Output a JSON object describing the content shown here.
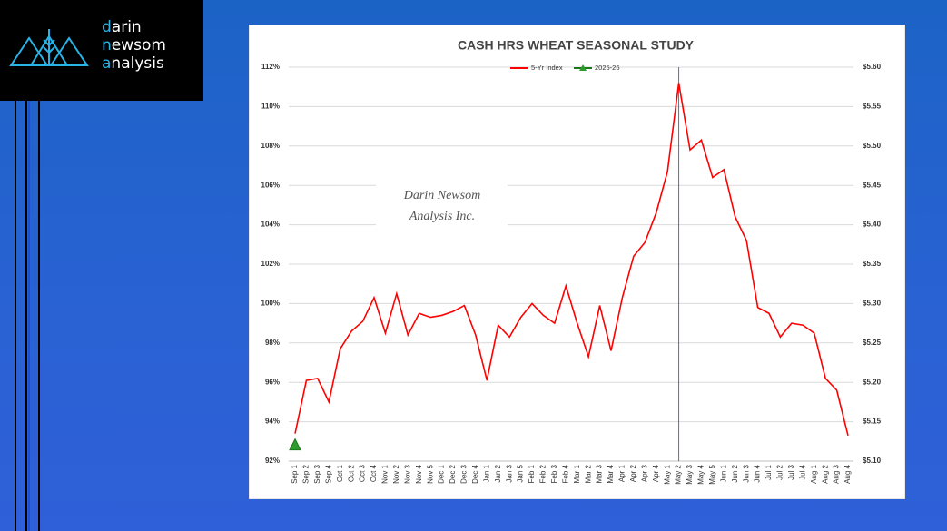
{
  "logo": [
    "darin",
    "newsom",
    "analysis"
  ],
  "chart_data": {
    "type": "line",
    "title": "CASH HRS WHEAT SEASONAL STUDY",
    "annotation": [
      "Darin Newsom",
      "Analysis Inc."
    ],
    "highlight": "May 2",
    "categories": [
      "Sep 1",
      "Sep 2",
      "Sep 3",
      "Sep 4",
      "Oct 1",
      "Oct 2",
      "Oct 3",
      "Oct 4",
      "Nov 1",
      "Nov 2",
      "Nov 3",
      "Nov 4",
      "Nov 5",
      "Dec 1",
      "Dec 2",
      "Dec 3",
      "Dec 4",
      "Jan 1",
      "Jan 2",
      "Jan 3",
      "Jan 5",
      "Feb 1",
      "Feb 2",
      "Feb 3",
      "Feb 4",
      "Mar 1",
      "Mar 2",
      "Mar 3",
      "Mar 4",
      "Apr 1",
      "Apr 2",
      "Apr 3",
      "Apr 4",
      "May 1",
      "May 2",
      "May 3",
      "May 4",
      "May 5",
      "Jun 1",
      "Jun 2",
      "Jun 3",
      "Jun 4",
      "Jul 1",
      "Jul 2",
      "Jul 3",
      "Jul 4",
      "Aug 1",
      "Aug 2",
      "Aug 3",
      "Aug 4"
    ],
    "series": [
      {
        "name": "5-Yr Index",
        "color": "#ff0000",
        "values": [
          93.4,
          96.1,
          96.2,
          95.0,
          97.7,
          98.6,
          99.1,
          100.3,
          98.5,
          100.5,
          98.4,
          99.5,
          99.3,
          99.4,
          99.6,
          99.9,
          98.4,
          96.1,
          98.9,
          98.3,
          99.3,
          100.0,
          99.4,
          99.0,
          100.9,
          99.0,
          97.3,
          99.9,
          97.6,
          100.3,
          102.4,
          103.1,
          104.6,
          106.7,
          111.2,
          107.8,
          108.3,
          106.4,
          106.8,
          104.4,
          103.2,
          99.8,
          99.5,
          98.3,
          99.0,
          98.9,
          98.5,
          96.2,
          95.6,
          93.3
        ]
      },
      {
        "name": "2025-26",
        "color": "#1a7a1a",
        "marker_color": "#2e9b2e",
        "axis": "y2",
        "values": [
          5.12,
          null,
          null,
          null,
          null,
          null,
          null,
          null,
          null,
          null,
          null,
          null,
          null,
          null,
          null,
          null,
          null,
          null,
          null,
          null,
          null,
          null,
          null,
          null,
          null,
          null,
          null,
          null,
          null,
          null,
          null,
          null,
          null,
          null,
          null,
          null,
          null,
          null,
          null,
          null,
          null,
          null,
          null,
          null,
          null,
          null,
          null,
          null,
          null,
          null
        ]
      }
    ],
    "ylim": [
      92,
      112
    ],
    "yticks": [
      {
        "value": 92,
        "label": "92%"
      },
      {
        "value": 94,
        "label": "94%"
      },
      {
        "value": 96,
        "label": "96%"
      },
      {
        "value": 98,
        "label": "98%"
      },
      {
        "value": 100,
        "label": "100%"
      },
      {
        "value": 102,
        "label": "102%"
      },
      {
        "value": 104,
        "label": "104%"
      },
      {
        "value": 106,
        "label": "106%"
      },
      {
        "value": 108,
        "label": "108%"
      },
      {
        "value": 110,
        "label": "110%"
      },
      {
        "value": 112,
        "label": "112%"
      }
    ],
    "y2lim": [
      5.1,
      5.6
    ],
    "y2ticks": [
      {
        "value": 5.1,
        "label": "$5.10"
      },
      {
        "value": 5.15,
        "label": "$5.15"
      },
      {
        "value": 5.2,
        "label": "$5.20"
      },
      {
        "value": 5.25,
        "label": "$5.25"
      },
      {
        "value": 5.3,
        "label": "$5.30"
      },
      {
        "value": 5.35,
        "label": "$5.35"
      },
      {
        "value": 5.4,
        "label": "$5.40"
      },
      {
        "value": 5.45,
        "label": "$5.45"
      },
      {
        "value": 5.5,
        "label": "$5.50"
      },
      {
        "value": 5.55,
        "label": "$5.55"
      },
      {
        "value": 5.6,
        "label": "$5.60"
      }
    ],
    "grid": true,
    "legend": "top",
    "highlight_color": "#4472c4"
  }
}
